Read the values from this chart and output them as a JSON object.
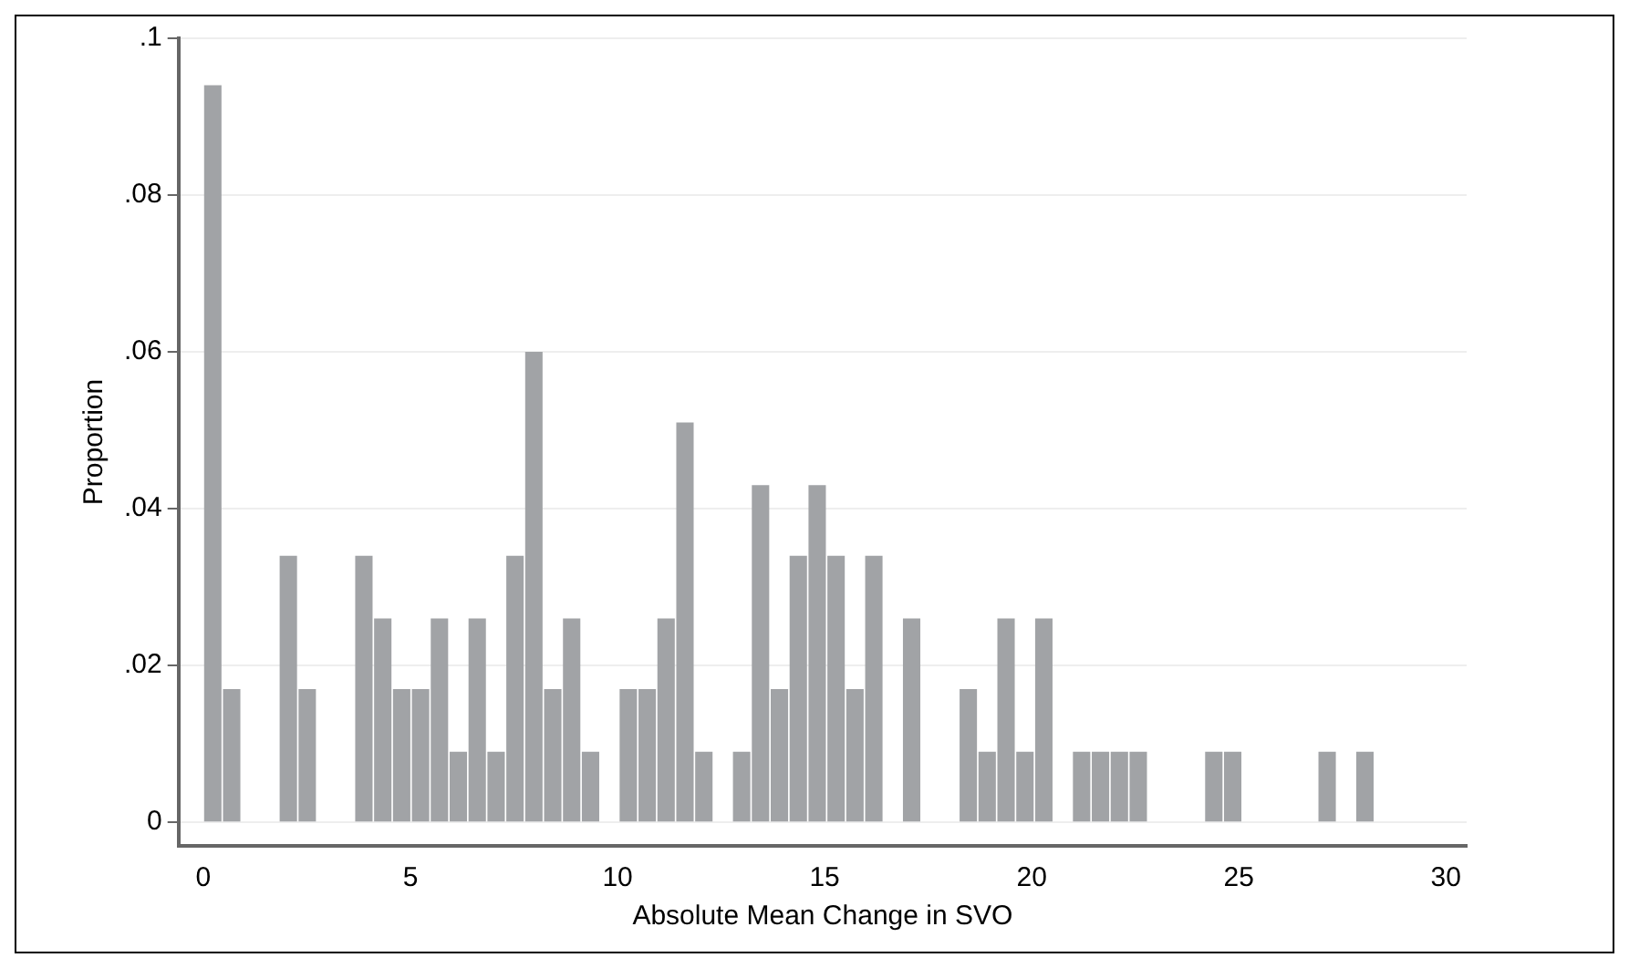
{
  "chart_data": {
    "type": "histogram",
    "xlabel": "Absolute Mean Change in SVO",
    "ylabel": "Proportion",
    "bins": [
      0,
      0.456,
      0.912,
      1.368,
      1.824,
      2.28,
      2.736,
      3.192,
      3.648,
      4.104,
      4.56,
      5.016,
      5.472,
      5.928,
      6.384,
      6.84,
      7.296,
      7.752,
      8.208,
      8.664,
      9.12,
      9.576,
      10.032,
      10.488,
      10.944,
      11.4,
      11.856,
      12.312,
      12.768,
      13.224,
      13.68,
      14.136,
      14.592,
      15.048,
      15.504,
      15.96,
      16.416,
      16.872,
      17.328,
      17.784,
      18.24,
      18.696,
      19.152,
      19.608,
      20.064,
      20.52,
      20.976,
      21.432,
      21.888,
      22.344,
      22.8,
      23.256,
      23.712,
      24.168,
      24.624,
      25.08,
      25.536,
      25.992,
      26.448,
      26.904,
      27.36,
      27.816,
      28.272
    ],
    "values": [
      0.094,
      0.017,
      0,
      0,
      0.034,
      0.017,
      0,
      0,
      0.034,
      0.026,
      0.017,
      0.017,
      0.026,
      0.009,
      0.026,
      0.009,
      0.034,
      0.06,
      0.017,
      0.026,
      0.009,
      0,
      0.017,
      0.017,
      0.026,
      0.051,
      0.009,
      0,
      0.009,
      0.043,
      0.017,
      0.034,
      0.043,
      0.034,
      0.017,
      0.034,
      0,
      0.026,
      0,
      0,
      0.017,
      0.009,
      0.026,
      0.009,
      0.026,
      0,
      0.009,
      0.009,
      0.009,
      0.009,
      0,
      0,
      0,
      0.009,
      0.009,
      0,
      0,
      0,
      0,
      0.009,
      0,
      0.009
    ],
    "color": "#a1a3a6",
    "xlim": [
      -0.6,
      30.5
    ],
    "xticks": [
      0,
      5,
      10,
      15,
      20,
      25,
      30
    ],
    "ylim": [
      -0.003,
      0.1
    ],
    "yticks": [
      {
        "value": 0,
        "label": "0"
      },
      {
        "value": 0.02,
        "label": ".02"
      },
      {
        "value": 0.04,
        "label": ".04"
      },
      {
        "value": 0.06,
        "label": ".06"
      },
      {
        "value": 0.08,
        "label": ".08"
      },
      {
        "value": 0.1,
        "label": ".1"
      }
    ],
    "grid": "y"
  }
}
